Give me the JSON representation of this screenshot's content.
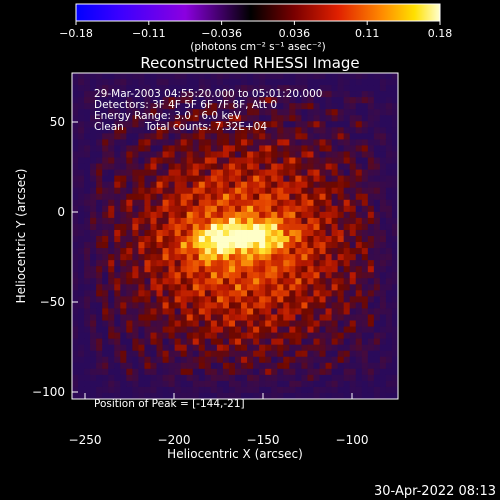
{
  "figure": {
    "colorbar": {
      "tick_labels": [
        "−0.18",
        "−0.11",
        "−0.036",
        "0.036",
        "0.11",
        "0.18"
      ],
      "unit_label": "(photons cm⁻² s⁻¹ asec⁻²)"
    },
    "title": "Reconstructed RHESSI Image",
    "annotations": {
      "time_range": "29-Mar-2003 04:55:20.000 to 05:01:20.000",
      "detectors": "Detectors: 3F 4F 5F 6F 7F 8F, Att 0",
      "energy": "Energy Range: 3.0 - 6.0 keV",
      "method": "Clean",
      "total_counts": "Total counts: 7.32E+04",
      "peak": "Position of Peak = [-144,-21]"
    },
    "axes": {
      "xlabel": "Heliocentric X (arcsec)",
      "ylabel": "Heliocentric Y (arcsec)",
      "x_ticks": [
        "−250",
        "−200",
        "−150",
        "−100"
      ],
      "y_ticks": [
        "50",
        "0",
        "−50",
        "−100"
      ]
    },
    "timestamp": "30-Apr-2022 08:13"
  },
  "chart_data": {
    "type": "heatmap",
    "title": "Reconstructed RHESSI Image",
    "xlabel": "Heliocentric X (arcsec)",
    "ylabel": "Heliocentric Y (arcsec)",
    "xlim": [
      -258,
      -62
    ],
    "ylim": [
      -122,
      74
    ],
    "color_scale": [
      -0.18,
      0.18
    ],
    "peak_position": [
      -144,
      -21
    ],
    "colormap": [
      "#0000ff",
      "#3b00ff",
      "#8b00e0",
      "#000000",
      "#7a0000",
      "#e02000",
      "#ff8a00",
      "#ffe000",
      "#ffffd0"
    ]
  }
}
